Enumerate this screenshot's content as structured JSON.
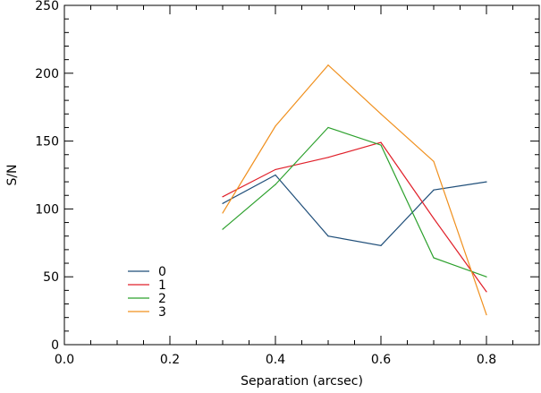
{
  "chart_data": {
    "type": "line",
    "title": "",
    "xlabel": "Separation (arcsec)",
    "ylabel": "S/N",
    "xlim": [
      0.0,
      0.9
    ],
    "ylim": [
      0,
      250
    ],
    "xticks": [
      0.0,
      0.2,
      0.4,
      0.6,
      0.8
    ],
    "xtick_labels": [
      "0.0",
      "0.2",
      "0.4",
      "0.6",
      "0.8"
    ],
    "yticks": [
      0,
      50,
      100,
      150,
      200,
      250
    ],
    "ytick_labels": [
      "0",
      "50",
      "100",
      "150",
      "200",
      "250"
    ],
    "grid": false,
    "legend_position": "lower-left",
    "x": [
      0.3,
      0.4,
      0.5,
      0.6,
      0.7,
      0.8
    ],
    "series": [
      {
        "name": "0",
        "color": "#1f4e79",
        "values": [
          104,
          125,
          80,
          73,
          114,
          120
        ]
      },
      {
        "name": "1",
        "color": "#e0202a",
        "values": [
          109,
          129,
          138,
          149,
          93,
          39
        ]
      },
      {
        "name": "2",
        "color": "#2ca02c",
        "values": [
          85,
          118,
          160,
          147,
          64,
          50
        ]
      },
      {
        "name": "3",
        "color": "#f0901e",
        "values": [
          97,
          161,
          206,
          170,
          135,
          22
        ]
      }
    ]
  }
}
